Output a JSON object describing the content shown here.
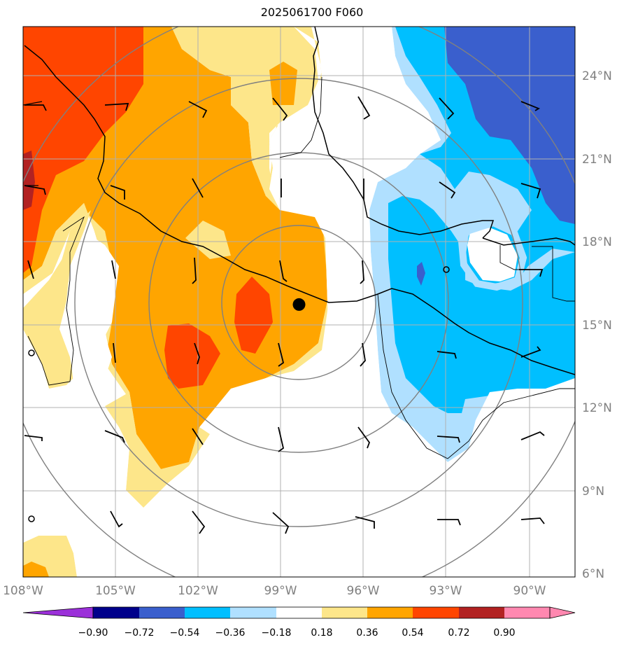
{
  "title": "2025061700 F060",
  "map": {
    "lon_range": [
      -108,
      -88.6
    ],
    "lat_range": [
      5.8,
      26.0
    ],
    "center_marker": {
      "lon": -98.3,
      "lat": 15.8
    },
    "lat_ticks": [
      {
        "value": 24,
        "label": "24°N"
      },
      {
        "value": 21,
        "label": "21°N"
      },
      {
        "value": 18,
        "label": "18°N"
      },
      {
        "value": 15,
        "label": "15°N"
      },
      {
        "value": 12,
        "label": "12°N"
      },
      {
        "value": 9,
        "label": "9°N"
      },
      {
        "value": 6,
        "label": "6°N"
      }
    ],
    "lon_ticks": [
      {
        "value": -108,
        "label": "108°W"
      },
      {
        "value": -105,
        "label": "105°W"
      },
      {
        "value": -102,
        "label": "102°W"
      },
      {
        "value": -99,
        "label": "99°W"
      },
      {
        "value": -96,
        "label": "96°W"
      },
      {
        "value": -93,
        "label": "93°W"
      },
      {
        "value": -90,
        "label": "90°W"
      }
    ]
  },
  "colorbar": {
    "ticks": [
      "−0.90",
      "−0.72",
      "−0.54",
      "−0.36",
      "−0.18",
      "0.18",
      "0.36",
      "0.54",
      "0.72",
      "0.90"
    ],
    "colors": [
      "#9b30d9",
      "#00008b",
      "#3a5fcd",
      "#00bfff",
      "#b0e0ff",
      "#ffffff",
      "#fde68a",
      "#ffa500",
      "#ff4500",
      "#b22222",
      "#ff88b0",
      "#ff88b0"
    ]
  },
  "palette": {
    "neg_low": "#b0e0ff",
    "neg_mid": "#00bfff",
    "neg_high": "#3a5fcd",
    "neg_vhigh": "#9b30d9",
    "pos_low": "#fde68a",
    "pos_mid": "#ffa500",
    "pos_high": "#ff4500",
    "pos_vhigh": "#b22222",
    "grid": "#b0b0b0",
    "ring": "#808080",
    "coast": "#000000"
  }
}
